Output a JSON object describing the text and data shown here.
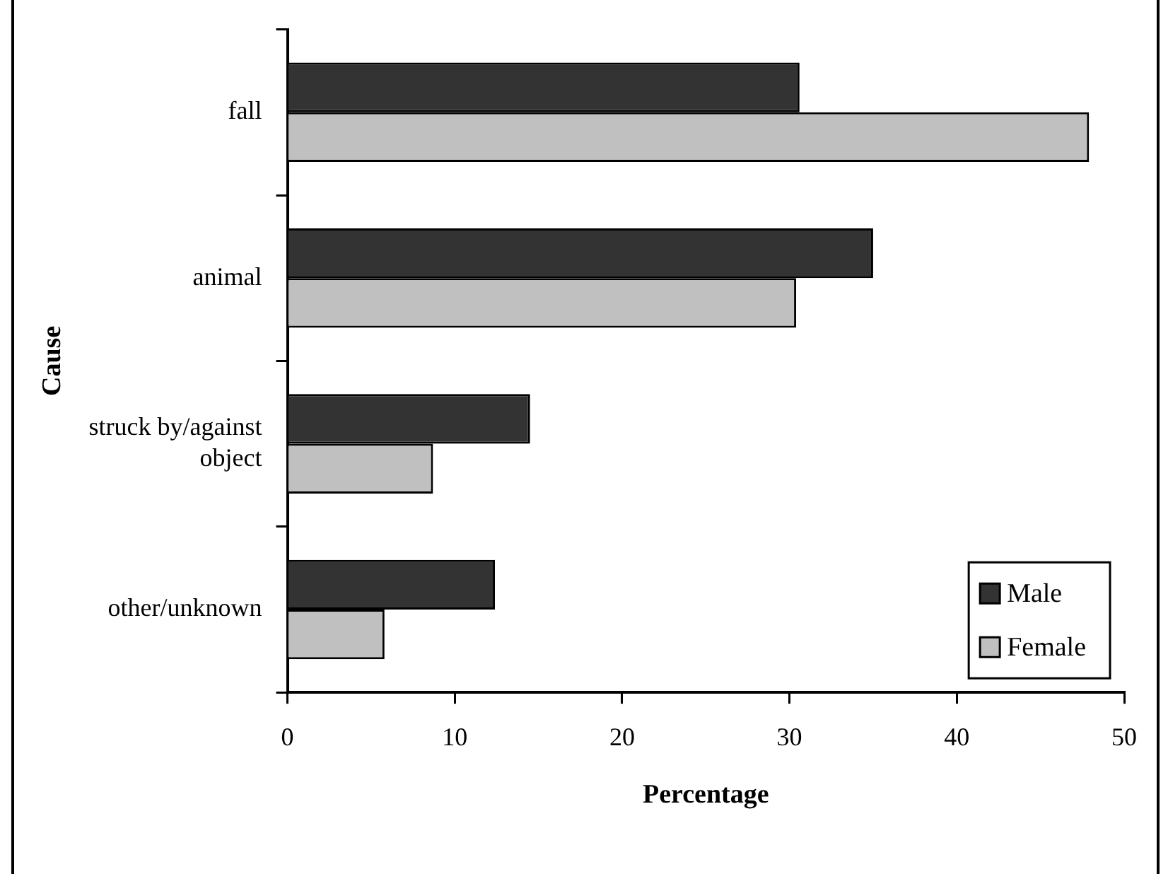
{
  "chart_data": {
    "type": "bar",
    "orientation": "horizontal",
    "xlabel": "Percentage",
    "ylabel": "Cause",
    "categories": [
      "fall",
      "animal",
      "struck by/against object",
      "other/unknown"
    ],
    "series": [
      {
        "name": "Male",
        "color": "#333333",
        "values": [
          30.6,
          35.0,
          14.5,
          12.4
        ]
      },
      {
        "name": "Female",
        "color": "#c0c0c0",
        "values": [
          47.9,
          30.4,
          8.7,
          5.8
        ]
      }
    ],
    "xlim": [
      0,
      50
    ],
    "xticks": [
      0,
      10,
      20,
      30,
      40,
      50
    ],
    "grid": false,
    "legend": "bottom right"
  }
}
